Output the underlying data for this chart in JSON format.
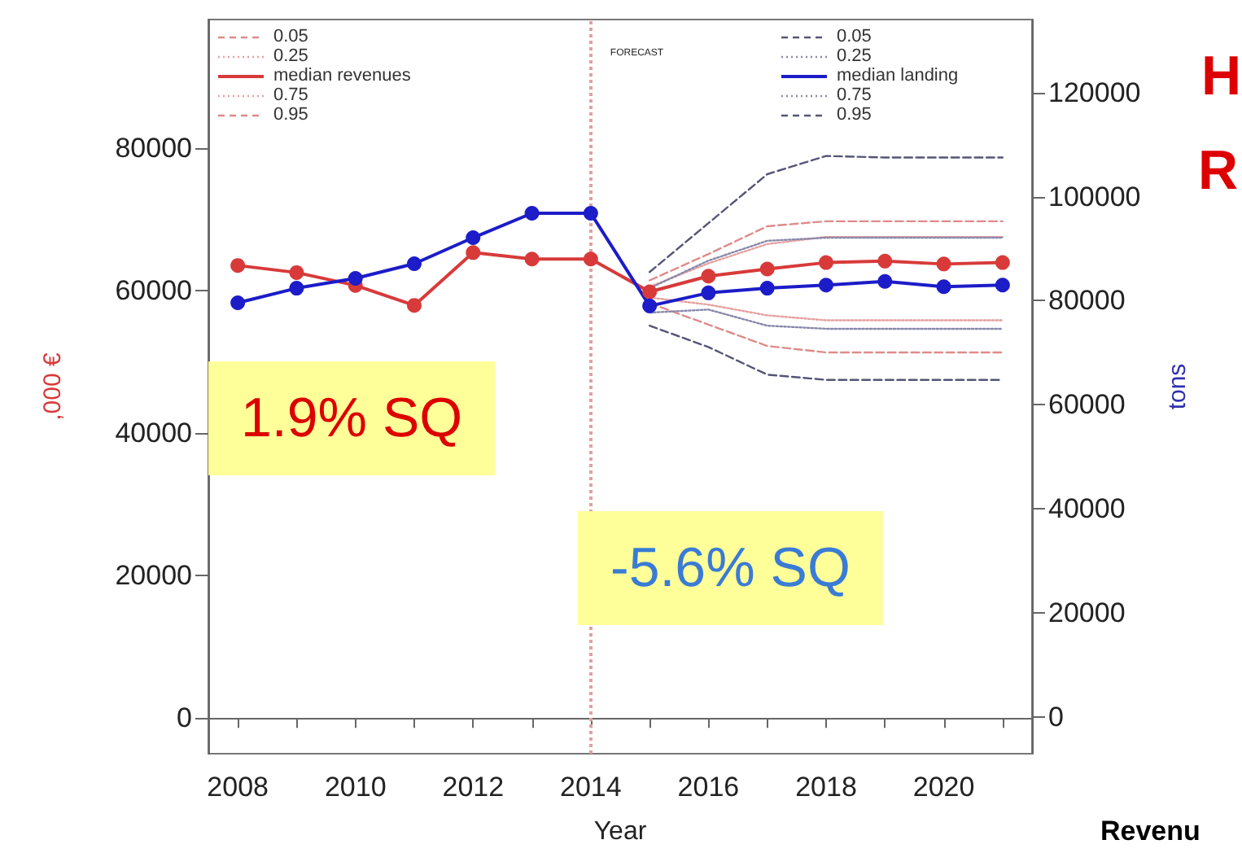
{
  "chart_data": {
    "type": "line",
    "xlabel": "Year",
    "ylabel": ",000 €",
    "y2label": "tons",
    "xlim": [
      2007.5,
      2021.5
    ],
    "xticks": [
      2008,
      {
        "value": 2009,
        "label": null
      },
      2010,
      {
        "value": 2011,
        "label": null
      },
      2012,
      {
        "value": 2013,
        "label": null
      },
      2014,
      {
        "value": 2015,
        "label": null
      },
      2016,
      {
        "value": 2017,
        "label": null
      },
      2018,
      {
        "value": 2019,
        "label": null
      },
      2020,
      {
        "value": 2021,
        "label": null
      }
    ],
    "ylim": [
      -5000,
      98000
    ],
    "yticks": [
      0,
      20000,
      40000,
      60000,
      80000
    ],
    "y2lim": [
      -7000,
      134000
    ],
    "y2ticks": [
      0,
      20000,
      40000,
      60000,
      80000,
      100000,
      120000
    ],
    "legend": "top",
    "series": [
      {
        "name": "0.05",
        "color": "#e08a8a",
        "line_style": "dashed",
        "marker": "none",
        "axis": "y",
        "x": [
          2015,
          2016,
          2017,
          2018,
          2019,
          2020,
          2021
        ],
        "values": [
          58200,
          55200,
          52200,
          51300,
          51300,
          51300,
          51300
        ]
      },
      {
        "name": "0.25",
        "color": "#e6a0a0",
        "line_style": "dotted",
        "marker": "none",
        "axis": "y",
        "x": [
          2015,
          2016,
          2017,
          2018,
          2019,
          2020,
          2021
        ],
        "values": [
          59000,
          58000,
          56500,
          55800,
          55800,
          55800,
          55800
        ]
      },
      {
        "name": "median revenues",
        "color": "#d83a3a",
        "line_style": "solid",
        "marker": "circle",
        "axis": "y",
        "x": [
          2008,
          2009,
          2010,
          2011,
          2012,
          2013,
          2014,
          2015,
          2016,
          2017,
          2018,
          2019,
          2020,
          2021
        ],
        "values": [
          63500,
          62500,
          60700,
          57900,
          65300,
          64400,
          64400,
          59800,
          62000,
          63000,
          63900,
          64100,
          63700,
          63900
        ]
      },
      {
        "name": "0.75",
        "color": "#e6a0a0",
        "line_style": "dotted",
        "marker": "none",
        "axis": "y",
        "x": [
          2015,
          2016,
          2017,
          2018,
          2019,
          2020,
          2021
        ],
        "values": [
          60500,
          63800,
          66500,
          67500,
          67500,
          67500,
          67500
        ]
      },
      {
        "name": "0.95",
        "color": "#e08a8a",
        "line_style": "dashed",
        "marker": "none",
        "axis": "y",
        "x": [
          2015,
          2016,
          2017,
          2018,
          2019,
          2020,
          2021
        ],
        "values": [
          61400,
          65100,
          69000,
          69700,
          69700,
          69700,
          69700
        ]
      },
      {
        "name": "0.05",
        "color": "#555577",
        "line_style": "dashed",
        "marker": "none",
        "axis": "y2",
        "x": [
          2015,
          2016,
          2017,
          2018,
          2019,
          2020,
          2021
        ],
        "values": [
          75200,
          71100,
          65800,
          64800,
          64800,
          64800,
          64800
        ]
      },
      {
        "name": "0.25",
        "color": "#8888aa",
        "line_style": "dotted",
        "marker": "none",
        "axis": "y2",
        "x": [
          2015,
          2016,
          2017,
          2018,
          2019,
          2020,
          2021
        ],
        "values": [
          77700,
          78300,
          75200,
          74600,
          74600,
          74600,
          74600
        ]
      },
      {
        "name": "median landing",
        "color": "#1c1cc8",
        "line_style": "solid",
        "marker": "circle",
        "axis": "y2",
        "x": [
          2008,
          2009,
          2010,
          2011,
          2012,
          2013,
          2014,
          2015,
          2016,
          2017,
          2018,
          2019,
          2020,
          2021
        ],
        "values": [
          79600,
          82400,
          84300,
          87100,
          92100,
          96800,
          96800,
          79000,
          81500,
          82400,
          83000,
          83700,
          82700,
          83000
        ]
      },
      {
        "name": "0.75",
        "color": "#8888aa",
        "line_style": "dotted",
        "marker": "none",
        "axis": "y2",
        "x": [
          2015,
          2016,
          2017,
          2018,
          2019,
          2020,
          2021
        ],
        "values": [
          82400,
          87700,
          91500,
          92100,
          92100,
          92100,
          92100
        ]
      },
      {
        "name": "0.95",
        "color": "#555577",
        "line_style": "dashed",
        "marker": "none",
        "axis": "y2",
        "x": [
          2015,
          2016,
          2017,
          2018,
          2019,
          2020,
          2021
        ],
        "values": [
          85500,
          94900,
          104300,
          107800,
          107500,
          107500,
          107500
        ]
      }
    ],
    "ref_lines": [
      {
        "axis": "x",
        "value": 2014,
        "label": "FORECAST",
        "color": "#e0a0a0",
        "line_style": "dotted"
      }
    ],
    "annotations": [
      "1.9% SQ",
      "-5.6% SQ",
      "H",
      "R",
      "Revenu"
    ]
  }
}
